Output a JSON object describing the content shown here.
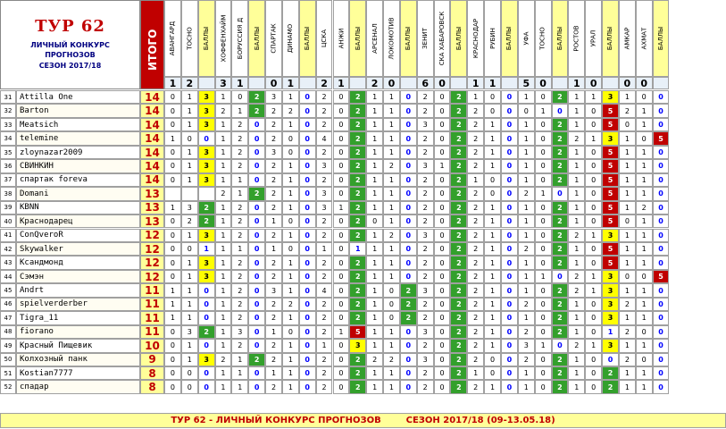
{
  "header": {
    "title": "ТУР 62",
    "sub1": "ЛИЧНЫЙ КОНКУРС",
    "sub2": "ПРОГНОЗОВ",
    "sub3": "СЕЗОН 2017/18",
    "itogo": "ИТОГО"
  },
  "colors": {
    "total_bg": "#ffff99",
    "total_fg": "#c00000",
    "itogo_header_bg": "#c00000",
    "ball_header_bg": "#ffff99",
    "green": "#33a02c",
    "yellow": "#ffff00",
    "red": "#c00000",
    "zero_blue": "#0000ff",
    "footer_bg": "#ffff99",
    "footer_fg": "#c00000"
  },
  "matches": [
    {
      "home": "АВАНГАРД",
      "away": "ТОСНО",
      "score": [
        "1",
        "2"
      ]
    },
    {
      "home": "ХОФФЕНХАЙМ",
      "away": "БОРУССИЯ Д",
      "score": [
        "3",
        "1"
      ]
    },
    {
      "home": "СПАРТАК",
      "away": "ДИНАМО",
      "score": [
        "0",
        "1"
      ]
    },
    {
      "home": "ЦСКА",
      "away": "АНЖИ",
      "score": [
        "2",
        "1"
      ]
    },
    {
      "home": "АРСЕНАЛ",
      "away": "ЛОКОМОТИВ",
      "score": [
        "2",
        "0"
      ]
    },
    {
      "home": "ЗЕНИТ",
      "away": "СКА ХАБАРОВСК",
      "score": [
        "6",
        "0"
      ]
    },
    {
      "home": "КРАСНОДАР",
      "away": "РУБИН",
      "score": [
        "1",
        "1"
      ]
    },
    {
      "home": "УФА",
      "away": "ТОСНО",
      "score": [
        "5",
        "0"
      ]
    },
    {
      "home": "РОСТОВ",
      "away": "УРАЛ",
      "score": [
        "1",
        "0"
      ]
    },
    {
      "home": "АМКАР",
      "away": "АХМАТ",
      "score": [
        "0",
        "0"
      ]
    }
  ],
  "ball_label": "БАЛЛЫ",
  "rows": [
    {
      "n": "31",
      "name": "Attilla One",
      "total": "14",
      "cells": [
        [
          "0",
          "1",
          "3"
        ],
        [
          "1",
          "0",
          "2"
        ],
        [
          "3",
          "1",
          "0"
        ],
        [
          "2",
          "0",
          "2"
        ],
        [
          "1",
          "1",
          "0"
        ],
        [
          "2",
          "0",
          "2"
        ],
        [
          "1",
          "0",
          "0"
        ],
        [
          "1",
          "0",
          "2"
        ],
        [
          "1",
          "1",
          "3"
        ],
        [
          "1",
          "0",
          "0"
        ]
      ]
    },
    {
      "n": "32",
      "name": "Barton",
      "total": "14",
      "cells": [
        [
          "0",
          "1",
          "3"
        ],
        [
          "2",
          "1",
          "2"
        ],
        [
          "2",
          "2",
          "0"
        ],
        [
          "2",
          "0",
          "2"
        ],
        [
          "1",
          "1",
          "0"
        ],
        [
          "2",
          "0",
          "2"
        ],
        [
          "2",
          "0",
          "0"
        ],
        [
          "0",
          "1",
          "0"
        ],
        [
          "1",
          "0",
          "5"
        ],
        [
          "2",
          "1",
          "0"
        ]
      ]
    },
    {
      "n": "33",
      "name": "Meatsich",
      "total": "14",
      "cells": [
        [
          "0",
          "1",
          "3"
        ],
        [
          "1",
          "2",
          "0"
        ],
        [
          "2",
          "1",
          "0"
        ],
        [
          "2",
          "0",
          "2"
        ],
        [
          "1",
          "1",
          "0"
        ],
        [
          "3",
          "0",
          "2"
        ],
        [
          "2",
          "1",
          "0"
        ],
        [
          "1",
          "0",
          "2"
        ],
        [
          "1",
          "0",
          "5"
        ],
        [
          "0",
          "1",
          "0"
        ]
      ]
    },
    {
      "n": "34",
      "name": "telemine",
      "total": "14",
      "cells": [
        [
          "1",
          "0",
          "0"
        ],
        [
          "1",
          "2",
          "0"
        ],
        [
          "2",
          "0",
          "0"
        ],
        [
          "4",
          "0",
          "2"
        ],
        [
          "1",
          "1",
          "0"
        ],
        [
          "2",
          "0",
          "2"
        ],
        [
          "2",
          "1",
          "0"
        ],
        [
          "1",
          "0",
          "2"
        ],
        [
          "2",
          "1",
          "3"
        ],
        [
          "1",
          "0",
          "5"
        ]
      ]
    },
    {
      "n": "35",
      "name": "zloynazar2009",
      "total": "14",
      "cells": [
        [
          "0",
          "1",
          "3"
        ],
        [
          "1",
          "2",
          "0"
        ],
        [
          "3",
          "0",
          "0"
        ],
        [
          "2",
          "0",
          "2"
        ],
        [
          "1",
          "1",
          "0"
        ],
        [
          "2",
          "0",
          "2"
        ],
        [
          "2",
          "1",
          "0"
        ],
        [
          "1",
          "0",
          "2"
        ],
        [
          "1",
          "0",
          "5"
        ],
        [
          "1",
          "1",
          "0"
        ]
      ]
    },
    {
      "n": "36",
      "name": "СВИНКИН",
      "total": "14",
      "cells": [
        [
          "0",
          "1",
          "3"
        ],
        [
          "1",
          "2",
          "0"
        ],
        [
          "2",
          "1",
          "0"
        ],
        [
          "3",
          "0",
          "2"
        ],
        [
          "1",
          "2",
          "0"
        ],
        [
          "3",
          "1",
          "2"
        ],
        [
          "2",
          "1",
          "0"
        ],
        [
          "1",
          "0",
          "2"
        ],
        [
          "1",
          "0",
          "5"
        ],
        [
          "1",
          "1",
          "0"
        ]
      ]
    },
    {
      "n": "37",
      "name": "спартак foreva",
      "total": "14",
      "cells": [
        [
          "0",
          "1",
          "3"
        ],
        [
          "1",
          "1",
          "0"
        ],
        [
          "2",
          "1",
          "0"
        ],
        [
          "2",
          "0",
          "2"
        ],
        [
          "1",
          "1",
          "0"
        ],
        [
          "2",
          "0",
          "2"
        ],
        [
          "1",
          "0",
          "0"
        ],
        [
          "1",
          "0",
          "2"
        ],
        [
          "1",
          "0",
          "5"
        ],
        [
          "1",
          "1",
          "0"
        ]
      ]
    },
    {
      "n": "38",
      "name": "Domani",
      "total": "13",
      "cells": [
        [
          "",
          "",
          ""
        ],
        [
          "2",
          "1",
          "2"
        ],
        [
          "2",
          "1",
          "0"
        ],
        [
          "3",
          "0",
          "2"
        ],
        [
          "1",
          "1",
          "0"
        ],
        [
          "2",
          "0",
          "2"
        ],
        [
          "2",
          "0",
          "0"
        ],
        [
          "2",
          "1",
          "0"
        ],
        [
          "1",
          "0",
          "5"
        ],
        [
          "1",
          "1",
          "0"
        ]
      ]
    },
    {
      "n": "39",
      "name": "KBNN",
      "total": "13",
      "cells": [
        [
          "1",
          "3",
          "2"
        ],
        [
          "1",
          "2",
          "0"
        ],
        [
          "2",
          "1",
          "0"
        ],
        [
          "3",
          "1",
          "2"
        ],
        [
          "1",
          "1",
          "0"
        ],
        [
          "2",
          "0",
          "2"
        ],
        [
          "2",
          "1",
          "0"
        ],
        [
          "1",
          "0",
          "2"
        ],
        [
          "1",
          "0",
          "5"
        ],
        [
          "1",
          "2",
          "0"
        ]
      ]
    },
    {
      "n": "40",
      "name": "Краснодарец",
      "total": "13",
      "cells": [
        [
          "0",
          "2",
          "2"
        ],
        [
          "1",
          "2",
          "0"
        ],
        [
          "1",
          "0",
          "0"
        ],
        [
          "2",
          "0",
          "2"
        ],
        [
          "0",
          "1",
          "0"
        ],
        [
          "2",
          "0",
          "2"
        ],
        [
          "2",
          "1",
          "0"
        ],
        [
          "1",
          "0",
          "2"
        ],
        [
          "1",
          "0",
          "5"
        ],
        [
          "0",
          "1",
          "0"
        ]
      ]
    },
    {
      "n": "41",
      "name": "ConQveroR",
      "total": "12",
      "cells": [
        [
          "0",
          "1",
          "3"
        ],
        [
          "1",
          "2",
          "0"
        ],
        [
          "2",
          "1",
          "0"
        ],
        [
          "2",
          "0",
          "2"
        ],
        [
          "1",
          "2",
          "0"
        ],
        [
          "3",
          "0",
          "2"
        ],
        [
          "2",
          "1",
          "0"
        ],
        [
          "1",
          "0",
          "2"
        ],
        [
          "2",
          "1",
          "3"
        ],
        [
          "1",
          "1",
          "0"
        ]
      ]
    },
    {
      "n": "42",
      "name": "Skywalker",
      "total": "12",
      "cells": [
        [
          "0",
          "0",
          "1"
        ],
        [
          "1",
          "1",
          "0"
        ],
        [
          "1",
          "0",
          "0"
        ],
        [
          "1",
          "0",
          "1"
        ],
        [
          "1",
          "1",
          "0"
        ],
        [
          "2",
          "0",
          "2"
        ],
        [
          "2",
          "1",
          "0"
        ],
        [
          "2",
          "0",
          "2"
        ],
        [
          "1",
          "0",
          "5"
        ],
        [
          "1",
          "1",
          "0"
        ]
      ]
    },
    {
      "n": "43",
      "name": "Ксандмонд",
      "total": "12",
      "cells": [
        [
          "0",
          "1",
          "3"
        ],
        [
          "1",
          "2",
          "0"
        ],
        [
          "2",
          "1",
          "0"
        ],
        [
          "2",
          "0",
          "2"
        ],
        [
          "1",
          "1",
          "0"
        ],
        [
          "2",
          "0",
          "2"
        ],
        [
          "2",
          "1",
          "0"
        ],
        [
          "1",
          "0",
          "2"
        ],
        [
          "1",
          "0",
          "5"
        ],
        [
          "1",
          "1",
          "0"
        ]
      ]
    },
    {
      "n": "44",
      "name": "Сэмэн",
      "total": "12",
      "cells": [
        [
          "0",
          "1",
          "3"
        ],
        [
          "1",
          "2",
          "0"
        ],
        [
          "2",
          "1",
          "0"
        ],
        [
          "2",
          "0",
          "2"
        ],
        [
          "1",
          "1",
          "0"
        ],
        [
          "2",
          "0",
          "2"
        ],
        [
          "2",
          "1",
          "0"
        ],
        [
          "1",
          "1",
          "0"
        ],
        [
          "2",
          "1",
          "3"
        ],
        [
          "0",
          "0",
          "5"
        ]
      ]
    },
    {
      "n": "45",
      "name": "Andrt",
      "total": "11",
      "cells": [
        [
          "1",
          "1",
          "0"
        ],
        [
          "1",
          "2",
          "0"
        ],
        [
          "3",
          "1",
          "0"
        ],
        [
          "4",
          "0",
          "2"
        ],
        [
          "1",
          "0",
          "2"
        ],
        [
          "3",
          "0",
          "2"
        ],
        [
          "2",
          "1",
          "0"
        ],
        [
          "1",
          "0",
          "2"
        ],
        [
          "2",
          "1",
          "3"
        ],
        [
          "1",
          "1",
          "0"
        ]
      ]
    },
    {
      "n": "46",
      "name": "spielverderber",
      "total": "11",
      "cells": [
        [
          "1",
          "1",
          "0"
        ],
        [
          "1",
          "2",
          "0"
        ],
        [
          "2",
          "2",
          "0"
        ],
        [
          "2",
          "0",
          "2"
        ],
        [
          "1",
          "0",
          "2"
        ],
        [
          "2",
          "0",
          "2"
        ],
        [
          "2",
          "1",
          "0"
        ],
        [
          "2",
          "0",
          "2"
        ],
        [
          "1",
          "0",
          "3"
        ],
        [
          "2",
          "1",
          "0"
        ]
      ]
    },
    {
      "n": "47",
      "name": "Tigra_11",
      "total": "11",
      "cells": [
        [
          "1",
          "1",
          "0"
        ],
        [
          "1",
          "2",
          "0"
        ],
        [
          "2",
          "1",
          "0"
        ],
        [
          "2",
          "0",
          "2"
        ],
        [
          "1",
          "0",
          "2"
        ],
        [
          "2",
          "0",
          "2"
        ],
        [
          "2",
          "1",
          "0"
        ],
        [
          "1",
          "0",
          "2"
        ],
        [
          "1",
          "0",
          "3"
        ],
        [
          "1",
          "1",
          "0"
        ]
      ]
    },
    {
      "n": "48",
      "name": "fiorano",
      "total": "11",
      "cells": [
        [
          "0",
          "3",
          "2"
        ],
        [
          "1",
          "3",
          "0"
        ],
        [
          "1",
          "0",
          "0"
        ],
        [
          "2",
          "1",
          "5"
        ],
        [
          "1",
          "1",
          "0"
        ],
        [
          "3",
          "0",
          "2"
        ],
        [
          "2",
          "1",
          "0"
        ],
        [
          "2",
          "0",
          "2"
        ],
        [
          "1",
          "0",
          "1"
        ],
        [
          "2",
          "0",
          "0"
        ]
      ]
    },
    {
      "n": "49",
      "name": "Красный Пищевик",
      "total": "10",
      "cells": [
        [
          "0",
          "1",
          "0"
        ],
        [
          "1",
          "2",
          "0"
        ],
        [
          "2",
          "1",
          "0"
        ],
        [
          "1",
          "0",
          "3"
        ],
        [
          "1",
          "1",
          "0"
        ],
        [
          "2",
          "0",
          "2"
        ],
        [
          "2",
          "1",
          "0"
        ],
        [
          "3",
          "1",
          "0"
        ],
        [
          "2",
          "1",
          "3"
        ],
        [
          "1",
          "1",
          "0"
        ]
      ]
    },
    {
      "n": "50",
      "name": "Колхозный панк",
      "total": "9",
      "cells": [
        [
          "0",
          "1",
          "3"
        ],
        [
          "2",
          "1",
          "2"
        ],
        [
          "2",
          "1",
          "0"
        ],
        [
          "2",
          "0",
          "2"
        ],
        [
          "2",
          "2",
          "0"
        ],
        [
          "3",
          "0",
          "2"
        ],
        [
          "2",
          "0",
          "0"
        ],
        [
          "2",
          "0",
          "2"
        ],
        [
          "1",
          "0",
          "0"
        ],
        [
          "2",
          "0",
          "0"
        ]
      ]
    },
    {
      "n": "51",
      "name": "Kostian7777",
      "total": "8",
      "cells": [
        [
          "0",
          "0",
          "0"
        ],
        [
          "1",
          "1",
          "0"
        ],
        [
          "1",
          "1",
          "0"
        ],
        [
          "2",
          "0",
          "2"
        ],
        [
          "1",
          "1",
          "0"
        ],
        [
          "2",
          "0",
          "2"
        ],
        [
          "1",
          "0",
          "0"
        ],
        [
          "1",
          "0",
          "2"
        ],
        [
          "1",
          "0",
          "2"
        ],
        [
          "1",
          "1",
          "0"
        ]
      ]
    },
    {
      "n": "52",
      "name": "спадар",
      "total": "8",
      "cells": [
        [
          "0",
          "0",
          "0"
        ],
        [
          "1",
          "1",
          "0"
        ],
        [
          "2",
          "1",
          "0"
        ],
        [
          "2",
          "0",
          "2"
        ],
        [
          "1",
          "1",
          "0"
        ],
        [
          "2",
          "0",
          "2"
        ],
        [
          "2",
          "1",
          "0"
        ],
        [
          "1",
          "0",
          "2"
        ],
        [
          "1",
          "0",
          "2"
        ],
        [
          "1",
          "1",
          "0"
        ]
      ]
    }
  ],
  "footer": "ТУР 62 - ЛИЧНЫЙ КОНКУРС ПРОГНОЗОВ        СЕЗОН 2017/18 (09-13.05.18)"
}
